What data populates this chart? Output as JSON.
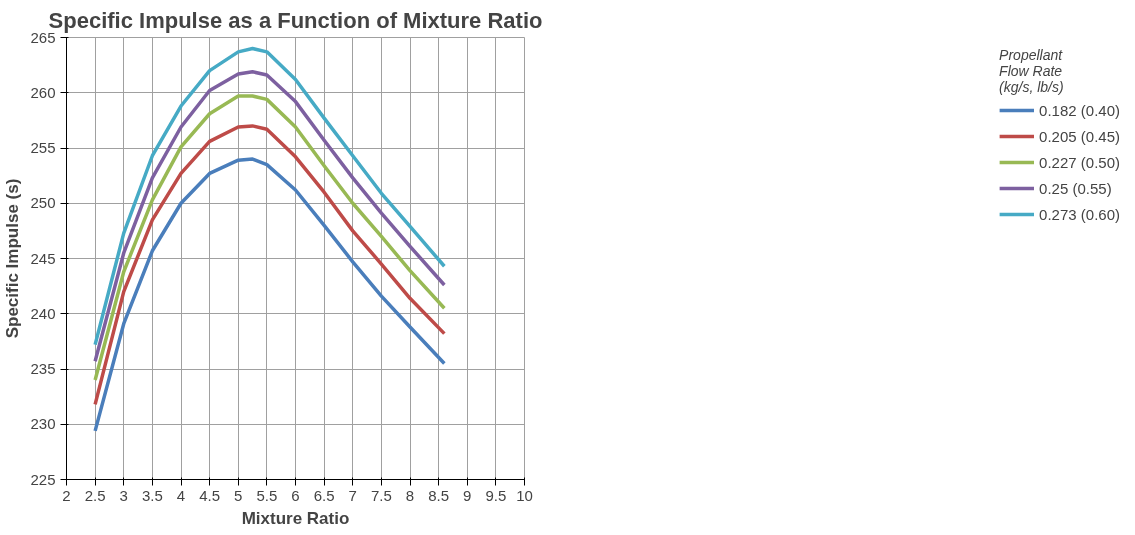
{
  "chart_data": {
    "type": "line",
    "title": "Specific Impulse as a Function of Mixture Ratio",
    "xlabel": "Mixture Ratio",
    "ylabel": "Specific Impulse (s)",
    "legend_title": "Propellant\nFlow Rate\n(kg/s, lb/s)",
    "x": [
      2.5,
      3,
      3.5,
      4,
      4.5,
      5,
      5.25,
      5.5,
      6,
      6.5,
      7,
      7.5,
      8,
      8.6
    ],
    "series": [
      {
        "name": "0.182 (0.40)",
        "color": "#4a7ebb",
        "values": [
          229.4,
          239.1,
          245.7,
          250,
          252.7,
          253.9,
          254.0,
          253.5,
          251.2,
          248.0,
          244.7,
          241.6,
          238.8,
          235.5
        ]
      },
      {
        "name": "0.205 (0.45)",
        "color": "#be4b48",
        "values": [
          231.8,
          242,
          248.5,
          252.7,
          255.6,
          256.9,
          257,
          256.7,
          254.2,
          251,
          247.5,
          244.5,
          241.4,
          238.2
        ]
      },
      {
        "name": "0.227 (0.50)",
        "color": "#98b954",
        "values": [
          234,
          243.8,
          250.3,
          255.1,
          258.1,
          259.7,
          259.7,
          259.4,
          256.9,
          253.4,
          250,
          247,
          243.9,
          240.5
        ]
      },
      {
        "name": "0.25 (0.55)",
        "color": "#7d60a0",
        "values": [
          235.7,
          245.5,
          252.3,
          256.9,
          260.2,
          261.7,
          261.9,
          261.6,
          259.2,
          255.7,
          252.3,
          249.1,
          246.1,
          242.6
        ]
      },
      {
        "name": "0.273 (0.60)",
        "color": "#46aac5",
        "values": [
          237.2,
          247.3,
          254.3,
          258.8,
          262,
          263.7,
          264,
          263.7,
          261.2,
          257.7,
          254.3,
          250.9,
          247.9,
          244.3
        ]
      }
    ],
    "xlim": [
      2,
      10
    ],
    "xticks": [
      2,
      2.5,
      3,
      3.5,
      4,
      4.5,
      5,
      5.5,
      6,
      6.5,
      7,
      7.5,
      8,
      8.5,
      9,
      9.5,
      10
    ],
    "ylim": [
      225,
      265
    ],
    "yticks": [
      225,
      230,
      235,
      240,
      245,
      250,
      255,
      260,
      265
    ],
    "grid": true,
    "legend": "right",
    "marker": "none",
    "line_style": "solid"
  }
}
